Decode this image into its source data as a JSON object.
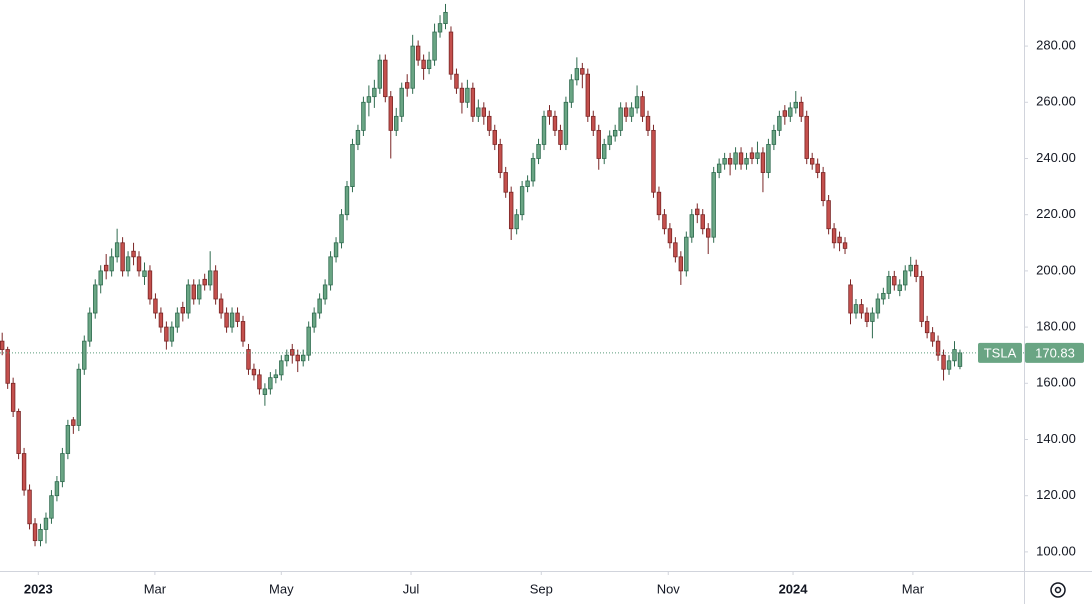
{
  "chart_data": {
    "type": "candlestick",
    "symbol": "TSLA",
    "last_price": 170.83,
    "up_color": "#6aa584",
    "down_color": "#c4504d",
    "ylim": [
      93.2,
      296.4
    ],
    "yticks": [
      {
        "value": 100,
        "label": "100.00"
      },
      {
        "value": 120,
        "label": "120.00"
      },
      {
        "value": 140,
        "label": "140.00"
      },
      {
        "value": 160,
        "label": "160.00"
      },
      {
        "value": 180,
        "label": "180.00"
      },
      {
        "value": 200,
        "label": "200.00"
      },
      {
        "value": 220,
        "label": "220.00"
      },
      {
        "value": 240,
        "label": "240.00"
      },
      {
        "value": 260,
        "label": "260.00"
      },
      {
        "value": 280,
        "label": "280.00"
      }
    ],
    "xlim": [
      -0.4,
      186.7
    ],
    "xticks": [
      {
        "value": 6.6,
        "label": "2023"
      },
      {
        "value": 27.9,
        "label": "Mar"
      },
      {
        "value": 51,
        "label": "May"
      },
      {
        "value": 74.7,
        "label": "Jul"
      },
      {
        "value": 98.5,
        "label": "Sep"
      },
      {
        "value": 121.7,
        "label": "Nov"
      },
      {
        "value": 144.5,
        "label": "2024"
      },
      {
        "value": 166.4,
        "label": "Mar"
      }
    ],
    "candles": [
      [
        175,
        178,
        170,
        172
      ],
      [
        172,
        173,
        158,
        160
      ],
      [
        160,
        162,
        148,
        150
      ],
      [
        150,
        151,
        133,
        135
      ],
      [
        135,
        137,
        120,
        122
      ],
      [
        122,
        124,
        108,
        110
      ],
      [
        110,
        112,
        102,
        104
      ],
      [
        104,
        110,
        102,
        108
      ],
      [
        108,
        114,
        103,
        112
      ],
      [
        112,
        122,
        110,
        120
      ],
      [
        120,
        127,
        118,
        125
      ],
      [
        125,
        137,
        123,
        135
      ],
      [
        135,
        147,
        133,
        145
      ],
      [
        147,
        148,
        142,
        145
      ],
      [
        145,
        167,
        143,
        165
      ],
      [
        165,
        177,
        163,
        175
      ],
      [
        175,
        187,
        173,
        185
      ],
      [
        185,
        197,
        183,
        195
      ],
      [
        195,
        202,
        192,
        200
      ],
      [
        202,
        206,
        197,
        200
      ],
      [
        200,
        208,
        198,
        205
      ],
      [
        205,
        215,
        203,
        210
      ],
      [
        210,
        212,
        198,
        200
      ],
      [
        200,
        207,
        198,
        205
      ],
      [
        207,
        210,
        202,
        205
      ],
      [
        205,
        207,
        198,
        200
      ],
      [
        198,
        203,
        195,
        200
      ],
      [
        200,
        202,
        188,
        190
      ],
      [
        190,
        192,
        183,
        185
      ],
      [
        185,
        187,
        178,
        180
      ],
      [
        180,
        182,
        172,
        175
      ],
      [
        175,
        182,
        173,
        180
      ],
      [
        180,
        187,
        178,
        185
      ],
      [
        187,
        189,
        182,
        185
      ],
      [
        185,
        197,
        183,
        195
      ],
      [
        195,
        197,
        188,
        190
      ],
      [
        190,
        197,
        188,
        195
      ],
      [
        197,
        199,
        193,
        195
      ],
      [
        195,
        207,
        193,
        200
      ],
      [
        200,
        202,
        188,
        190
      ],
      [
        190,
        192,
        183,
        185
      ],
      [
        185,
        187,
        178,
        180
      ],
      [
        180,
        187,
        178,
        185
      ],
      [
        185,
        187,
        180,
        182
      ],
      [
        182,
        184,
        173,
        175
      ],
      [
        172,
        174,
        163,
        165
      ],
      [
        165,
        167,
        161,
        163
      ],
      [
        163,
        165,
        156,
        158
      ],
      [
        156,
        160,
        152,
        158
      ],
      [
        158,
        164,
        156,
        162
      ],
      [
        162,
        165,
        160,
        163
      ],
      [
        163,
        170,
        161,
        168
      ],
      [
        168,
        172,
        166,
        170
      ],
      [
        172,
        174,
        167,
        170
      ],
      [
        170,
        172,
        164,
        168
      ],
      [
        168,
        172,
        166,
        170
      ],
      [
        170,
        182,
        168,
        180
      ],
      [
        180,
        187,
        178,
        185
      ],
      [
        185,
        192,
        183,
        190
      ],
      [
        190,
        197,
        188,
        195
      ],
      [
        195,
        207,
        193,
        205
      ],
      [
        205,
        212,
        203,
        210
      ],
      [
        210,
        222,
        208,
        220
      ],
      [
        220,
        232,
        218,
        230
      ],
      [
        230,
        247,
        228,
        245
      ],
      [
        245,
        252,
        243,
        250
      ],
      [
        250,
        262,
        248,
        260
      ],
      [
        260,
        266,
        255,
        262
      ],
      [
        262,
        268,
        258,
        265
      ],
      [
        265,
        277,
        263,
        275
      ],
      [
        275,
        277,
        260,
        262
      ],
      [
        262,
        264,
        240,
        250
      ],
      [
        250,
        258,
        248,
        255
      ],
      [
        255,
        267,
        253,
        265
      ],
      [
        267,
        270,
        262,
        265
      ],
      [
        265,
        284,
        263,
        280
      ],
      [
        280,
        282,
        273,
        275
      ],
      [
        275,
        277,
        268,
        272
      ],
      [
        272,
        278,
        270,
        275
      ],
      [
        275,
        288,
        273,
        285
      ],
      [
        285,
        291,
        283,
        288
      ],
      [
        288,
        295,
        286,
        292
      ],
      [
        285,
        287,
        268,
        270
      ],
      [
        270,
        272,
        263,
        265
      ],
      [
        265,
        267,
        256,
        260
      ],
      [
        260,
        268,
        258,
        265
      ],
      [
        265,
        267,
        253,
        255
      ],
      [
        255,
        261,
        253,
        258
      ],
      [
        258,
        260,
        252,
        255
      ],
      [
        255,
        257,
        248,
        250
      ],
      [
        250,
        252,
        243,
        245
      ],
      [
        245,
        247,
        233,
        235
      ],
      [
        235,
        237,
        226,
        228
      ],
      [
        228,
        230,
        211,
        215
      ],
      [
        215,
        222,
        213,
        220
      ],
      [
        220,
        232,
        218,
        230
      ],
      [
        230,
        234,
        228,
        232
      ],
      [
        232,
        242,
        230,
        240
      ],
      [
        240,
        247,
        238,
        245
      ],
      [
        245,
        257,
        243,
        255
      ],
      [
        257,
        259,
        252,
        255
      ],
      [
        255,
        257,
        248,
        250
      ],
      [
        250,
        252,
        243,
        245
      ],
      [
        245,
        262,
        243,
        260
      ],
      [
        260,
        270,
        258,
        268
      ],
      [
        268,
        276,
        266,
        272
      ],
      [
        272,
        274,
        265,
        270
      ],
      [
        270,
        272,
        253,
        255
      ],
      [
        255,
        257,
        248,
        250
      ],
      [
        250,
        252,
        236,
        240
      ],
      [
        240,
        247,
        238,
        245
      ],
      [
        245,
        250,
        243,
        248
      ],
      [
        248,
        252,
        246,
        250
      ],
      [
        250,
        260,
        248,
        258
      ],
      [
        258,
        260,
        253,
        255
      ],
      [
        255,
        260,
        253,
        258
      ],
      [
        258,
        266,
        256,
        262
      ],
      [
        262,
        264,
        253,
        255
      ],
      [
        255,
        257,
        248,
        250
      ],
      [
        250,
        252,
        226,
        228
      ],
      [
        228,
        230,
        218,
        220
      ],
      [
        220,
        222,
        213,
        215
      ],
      [
        215,
        217,
        208,
        210
      ],
      [
        210,
        212,
        203,
        205
      ],
      [
        205,
        207,
        195,
        200
      ],
      [
        200,
        214,
        198,
        212
      ],
      [
        212,
        222,
        210,
        220
      ],
      [
        222,
        224,
        217,
        220
      ],
      [
        220,
        222,
        213,
        215
      ],
      [
        215,
        217,
        206,
        212
      ],
      [
        212,
        237,
        210,
        235
      ],
      [
        235,
        240,
        233,
        238
      ],
      [
        238,
        242,
        236,
        240
      ],
      [
        240,
        242,
        234,
        238
      ],
      [
        238,
        244,
        236,
        242
      ],
      [
        242,
        244,
        236,
        238
      ],
      [
        238,
        242,
        236,
        240
      ],
      [
        242,
        244,
        238,
        240
      ],
      [
        240,
        246,
        238,
        242
      ],
      [
        242,
        244,
        228,
        235
      ],
      [
        235,
        247,
        233,
        245
      ],
      [
        245,
        252,
        243,
        250
      ],
      [
        250,
        257,
        248,
        255
      ],
      [
        257,
        259,
        252,
        255
      ],
      [
        255,
        260,
        253,
        258
      ],
      [
        258,
        264,
        256,
        260
      ],
      [
        260,
        262,
        253,
        255
      ],
      [
        255,
        257,
        238,
        240
      ],
      [
        240,
        242,
        236,
        238
      ],
      [
        238,
        240,
        233,
        235
      ],
      [
        235,
        237,
        223,
        225
      ],
      [
        225,
        227,
        213,
        215
      ],
      [
        215,
        217,
        208,
        210
      ],
      [
        212,
        214,
        207,
        210
      ],
      [
        210,
        212,
        206,
        208
      ],
      [
        195,
        197,
        181,
        185
      ],
      [
        185,
        190,
        183,
        188
      ],
      [
        188,
        190,
        183,
        185
      ],
      [
        185,
        187,
        180,
        182
      ],
      [
        182,
        187,
        176,
        185
      ],
      [
        185,
        192,
        183,
        190
      ],
      [
        190,
        194,
        188,
        192
      ],
      [
        192,
        200,
        190,
        198
      ],
      [
        198,
        200,
        193,
        195
      ],
      [
        193,
        197,
        191,
        195
      ],
      [
        195,
        202,
        193,
        200
      ],
      [
        200,
        205,
        198,
        202
      ],
      [
        202,
        204,
        196,
        198
      ],
      [
        198,
        200,
        180,
        182
      ],
      [
        182,
        184,
        176,
        178
      ],
      [
        178,
        180,
        173,
        175
      ],
      [
        175,
        177,
        168,
        170
      ],
      [
        170,
        172,
        161,
        165
      ],
      [
        165,
        170,
        163,
        168
      ],
      [
        168,
        175,
        166,
        172
      ],
      [
        166,
        172,
        165,
        170.83
      ]
    ]
  }
}
